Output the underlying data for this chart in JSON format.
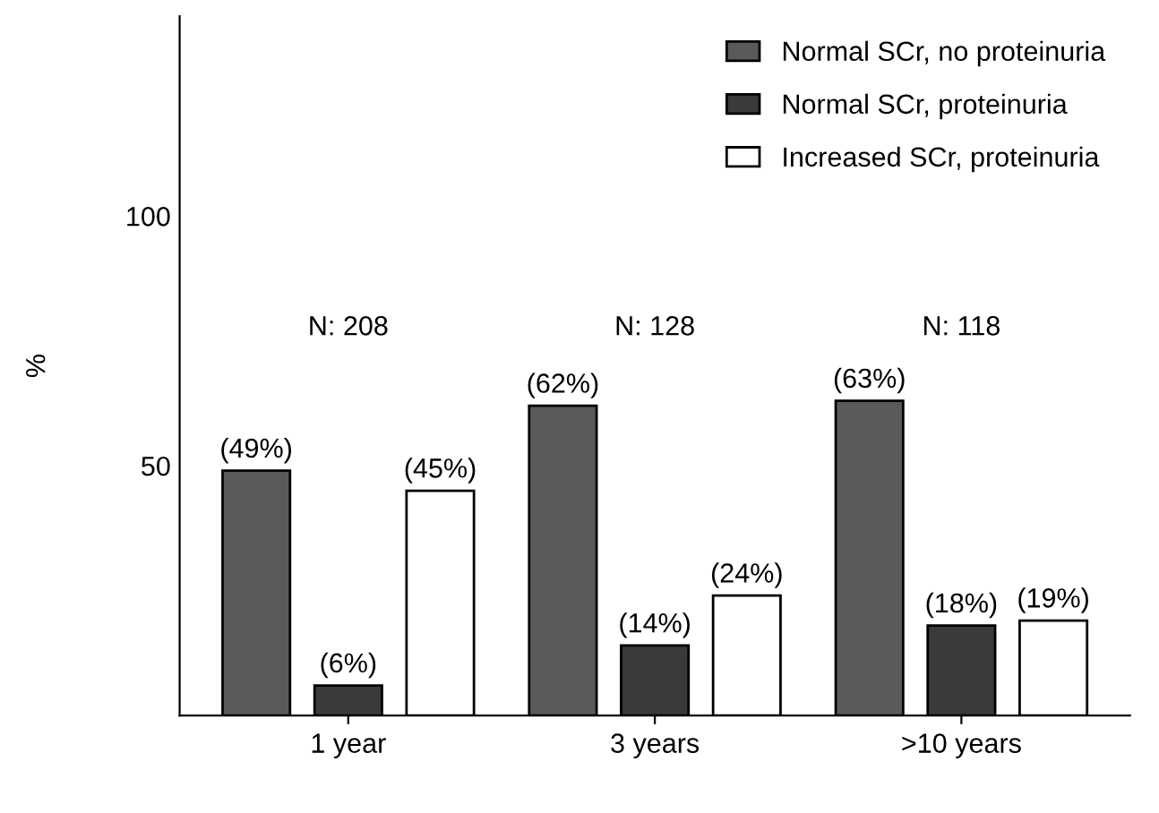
{
  "chart_data": {
    "type": "bar",
    "ylabel": "%",
    "categories": [
      "1 year",
      "3 years",
      ">10 years"
    ],
    "series": [
      {
        "name": "Normal SCr, no proteinuria",
        "color": "#5a5a5a",
        "values": [
          49,
          62,
          63
        ],
        "value_labels": [
          "(49%)",
          "(62%)",
          "(63%)"
        ]
      },
      {
        "name": "Normal SCr, proteinuria",
        "color": "#3a3a3a",
        "values": [
          6,
          14,
          18
        ],
        "value_labels": [
          "(6%)",
          "(14%)",
          "(18%)"
        ]
      },
      {
        "name": "Increased SCr, proteinuria",
        "color": "#ffffff",
        "values": [
          45,
          24,
          19
        ],
        "value_labels": [
          "(45%)",
          "(24%)",
          "(19%)"
        ]
      }
    ],
    "ylim": [
      0,
      140
    ],
    "yticks": [
      50,
      100
    ],
    "grid": false,
    "legend": "top right",
    "annotations": [
      "N: 208",
      "N: 128",
      "N: 118"
    ]
  }
}
